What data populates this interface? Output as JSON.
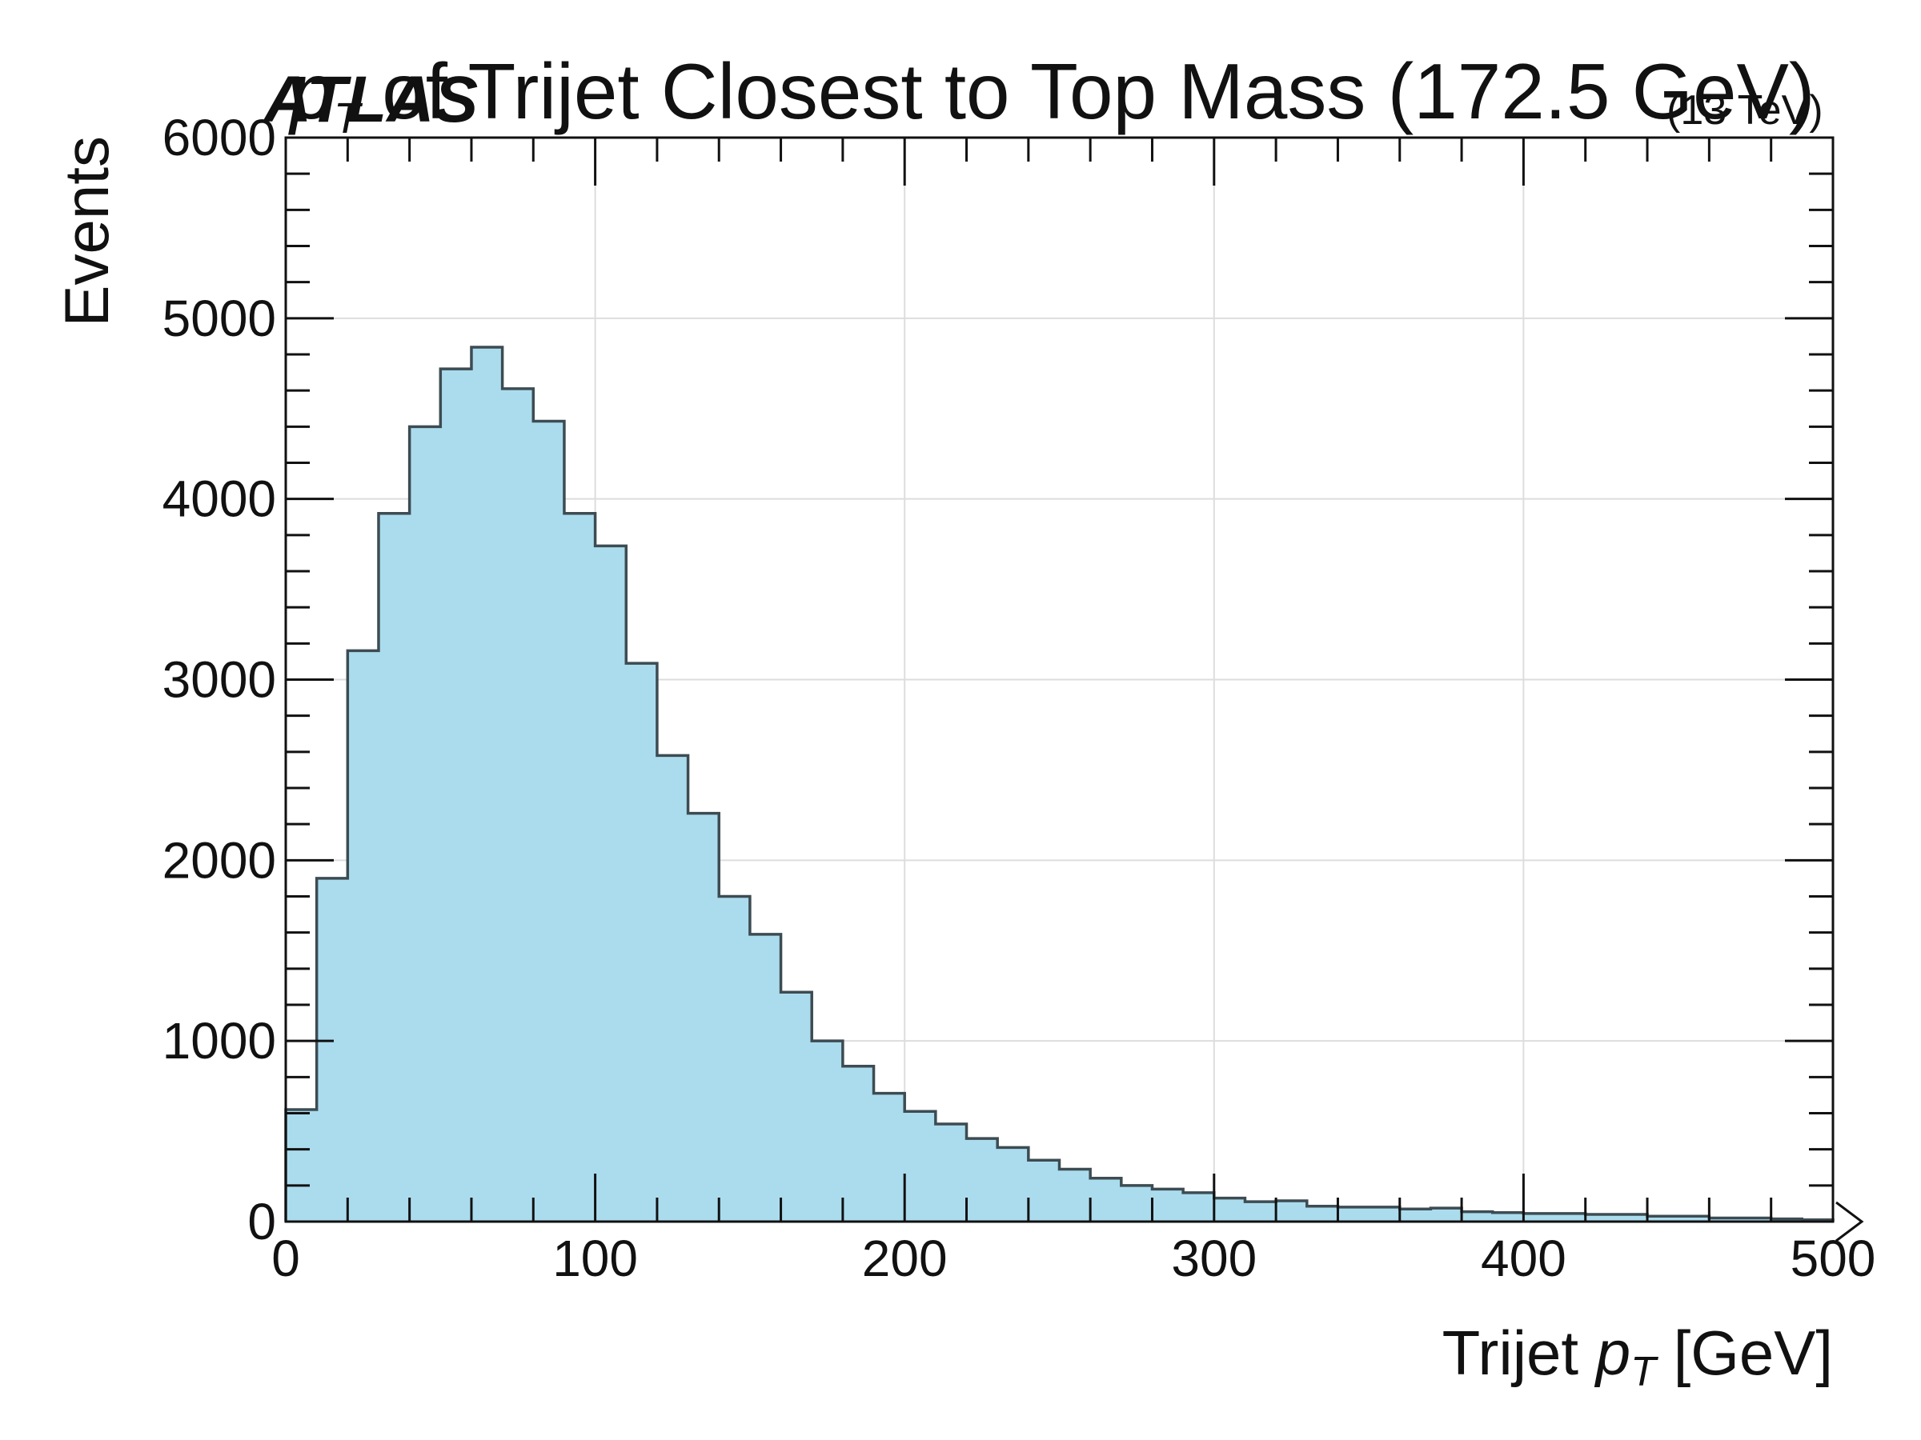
{
  "chart_data": {
    "type": "bar",
    "title": {
      "prefix_italic": "p",
      "prefix_sub": "T",
      "main": " of Trijet Closest to Top Mass (172.5 GeV)"
    },
    "experiment_label": "ATLAS",
    "energy_label": "(13 TeV)",
    "xlabel": {
      "before": "Trijet ",
      "italic": "p",
      "sub": "T",
      "after": " [GeV]"
    },
    "ylabel": "Events",
    "xlim": [
      0,
      500
    ],
    "ylim": [
      0,
      6000
    ],
    "x_ticks": [
      "0",
      "100",
      "200",
      "300",
      "400",
      "500"
    ],
    "y_ticks": [
      "0",
      "1000",
      "2000",
      "3000",
      "4000",
      "5000",
      "6000"
    ],
    "grid": true,
    "overflow_arrow": true,
    "bin_width": 10,
    "bin_edges": [
      0,
      10,
      20,
      30,
      40,
      50,
      60,
      70,
      80,
      90,
      100,
      110,
      120,
      130,
      140,
      150,
      160,
      170,
      180,
      190,
      200,
      210,
      220,
      230,
      240,
      250,
      260,
      270,
      280,
      290,
      300,
      310,
      320,
      330,
      340,
      350,
      360,
      370,
      380,
      390,
      400,
      410,
      420,
      430,
      440,
      450,
      460,
      470,
      480,
      490,
      500
    ],
    "values": [
      620,
      1900,
      3160,
      3920,
      4400,
      4720,
      4840,
      4610,
      4430,
      3920,
      3740,
      3090,
      2580,
      2260,
      1800,
      1590,
      1270,
      1000,
      860,
      710,
      610,
      540,
      460,
      410,
      340,
      290,
      240,
      200,
      180,
      160,
      130,
      110,
      115,
      85,
      80,
      80,
      70,
      75,
      55,
      50,
      45,
      45,
      40,
      40,
      30,
      30,
      20,
      20,
      15,
      10
    ],
    "colors": {
      "fill": "#ABDCEE",
      "edge": "#3D4C52",
      "grid": "#DDDDDD",
      "axis": "#111111"
    }
  }
}
